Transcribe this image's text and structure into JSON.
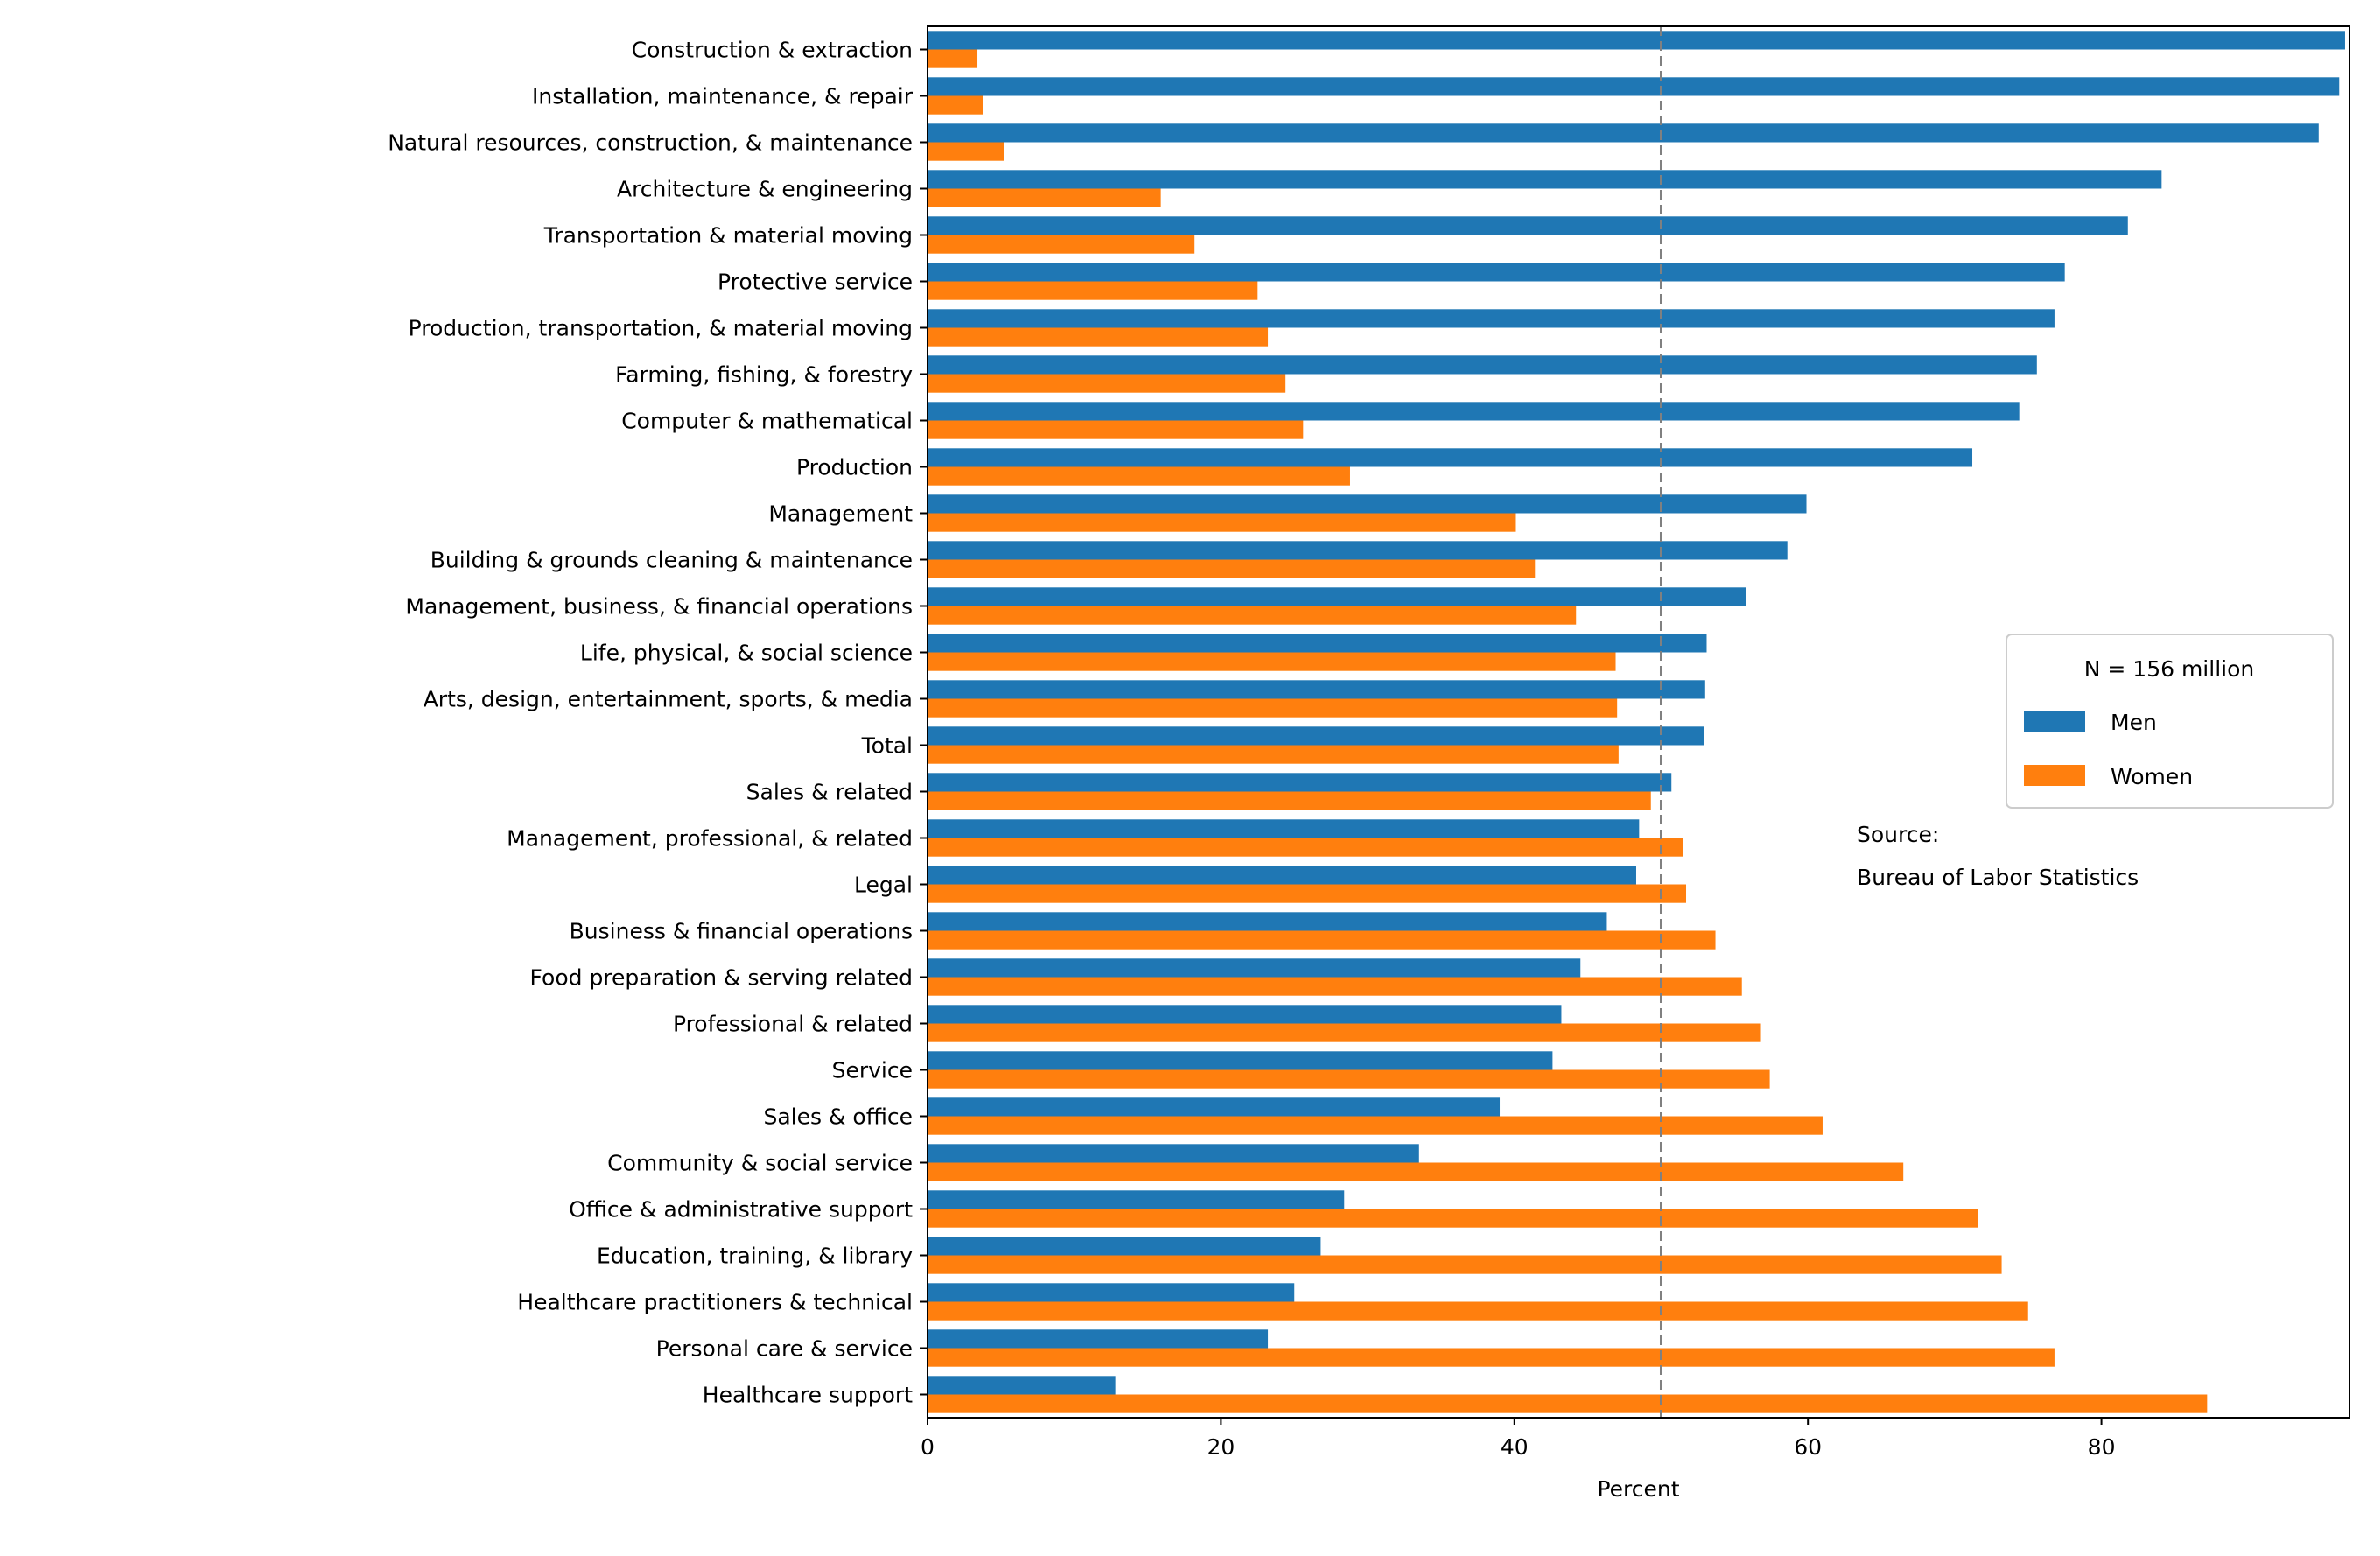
{
  "chart_data": {
    "type": "bar",
    "orientation": "horizontal",
    "xlabel": "Percent",
    "xlim": [
      0,
      96.9
    ],
    "xticks": [
      0,
      20,
      40,
      60,
      80
    ],
    "reference_line": 50,
    "legend": {
      "title": "N = 156 million",
      "placement": "right"
    },
    "annotation": [
      "Source:",
      "Bureau of Labor Statistics"
    ],
    "categories": [
      "Construction & extraction",
      "Installation, maintenance, & repair",
      "Natural resources, construction, & maintenance",
      "Architecture & engineering",
      "Transportation & material moving",
      "Protective service",
      "Production, transportation, & material moving",
      "Farming, fishing, & forestry",
      "Computer & mathematical",
      "Production",
      "Management",
      "Building & grounds cleaning & maintenance",
      "Management, business, & financial operations",
      "Life, physical, & social science",
      "Arts, design, entertainment, sports, & media",
      "Total",
      "Sales & related",
      "Management, professional, & related",
      "Legal",
      "Business & financial operations",
      "Food preparation & serving related",
      "Professional & related",
      "Service",
      "Sales & office",
      "Community & social service",
      "Office & administrative support",
      "Education, training, & library",
      "Healthcare practitioners & technical",
      "Personal care & service",
      "Healthcare support"
    ],
    "series": [
      {
        "name": "Men",
        "color": "#1f77b4",
        "values": [
          96.6,
          96.2,
          94.8,
          84.1,
          81.8,
          77.5,
          76.8,
          75.6,
          74.4,
          71.2,
          59.9,
          58.6,
          55.8,
          53.1,
          53.0,
          52.9,
          50.7,
          48.5,
          48.3,
          46.3,
          44.5,
          43.2,
          42.6,
          39.0,
          33.5,
          28.4,
          26.8,
          25.0,
          23.2,
          12.8
        ]
      },
      {
        "name": "Women",
        "color": "#ff7f0e",
        "values": [
          3.4,
          3.8,
          5.2,
          15.9,
          18.2,
          22.5,
          23.2,
          24.4,
          25.6,
          28.8,
          40.1,
          41.4,
          44.2,
          46.9,
          47.0,
          47.1,
          49.3,
          51.5,
          51.7,
          53.7,
          55.5,
          56.8,
          57.4,
          61.0,
          66.5,
          71.6,
          73.2,
          75.0,
          76.8,
          87.2
        ]
      }
    ]
  }
}
